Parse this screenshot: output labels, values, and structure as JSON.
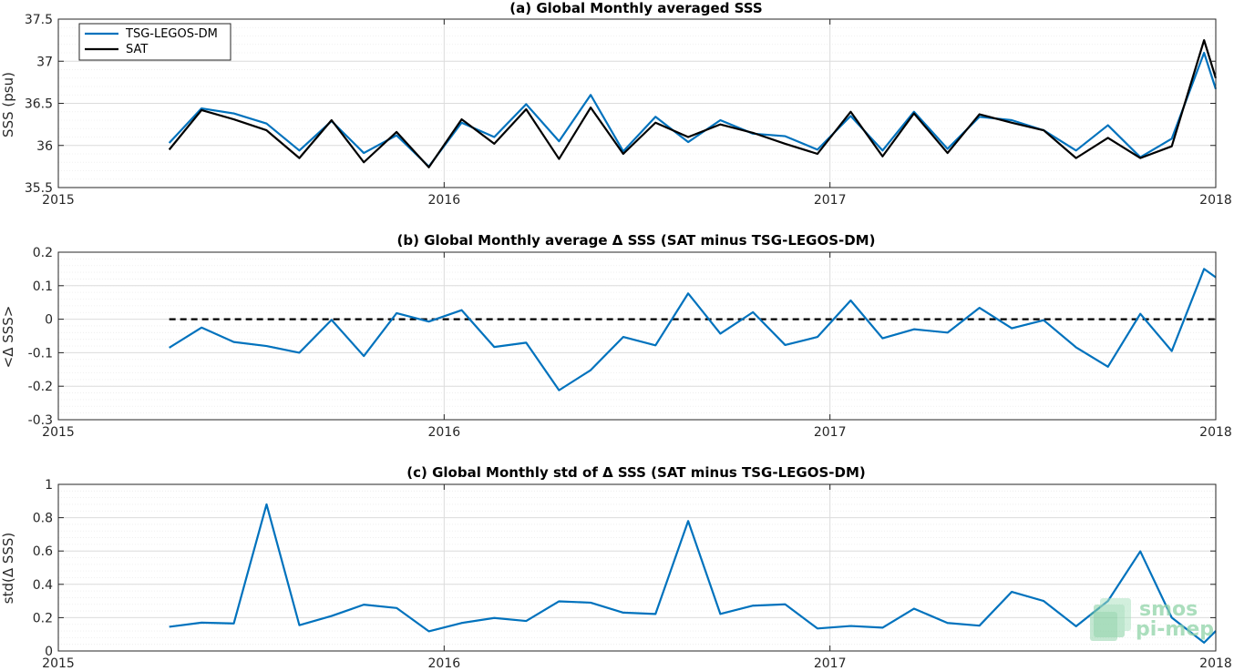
{
  "colors": {
    "tsg": "#0072bd",
    "sat": "#000000",
    "grid": "#dcdcdc",
    "watermark": "#8fd3a8"
  },
  "watermark": {
    "line1": "smos",
    "line2": "pi-mep"
  },
  "chart_data": [
    {
      "type": "line",
      "title": "(a) Global Monthly averaged SSS",
      "ylabel": "SSS (psu)",
      "xlabel": "",
      "xlim": [
        2015,
        2018
      ],
      "ylim": [
        35.5,
        37.5
      ],
      "xticks": [
        2015,
        2016,
        2017,
        2018
      ],
      "xtick_labels": [
        "2015",
        "2016",
        "2017",
        "2018"
      ],
      "yticks": [
        35.5,
        36,
        36.5,
        37,
        37.5
      ],
      "ytick_labels": [
        "35.5",
        "36",
        "36.5",
        "37",
        "37.5"
      ],
      "grid": true,
      "legend": {
        "placement": "top-left",
        "entries": [
          "TSG-LEGOS-DM",
          "SAT"
        ]
      },
      "x": [
        2015.2874,
        2015.3712,
        2015.4548,
        2015.5397,
        2015.6247,
        2015.7082,
        2015.7918,
        2015.8767,
        2015.9603,
        2016.0453,
        2016.1299,
        2016.2126,
        2016.2978,
        2016.3798,
        2016.4642,
        2016.5478,
        2016.6325,
        2016.7159,
        2016.8005,
        2016.8839,
        2016.9676,
        2017.0537,
        2017.1363,
        2017.2178,
        2017.3048,
        2017.3874,
        2017.4713,
        2017.5539,
        2017.6379,
        2017.7205,
        2017.8044,
        2017.8859,
        2017.9697,
        2018.0
      ],
      "series": [
        {
          "name": "TSG-LEGOS-DM",
          "color": "#0072bd",
          "values": [
            36.03,
            36.44,
            36.38,
            36.26,
            35.94,
            36.29,
            35.91,
            36.12,
            35.75,
            36.27,
            36.1,
            36.49,
            36.05,
            36.6,
            35.93,
            36.34,
            36.04,
            36.3,
            36.14,
            36.11,
            35.95,
            36.35,
            35.94,
            36.4,
            35.96,
            36.34,
            36.3,
            36.18,
            35.94,
            36.24,
            35.86,
            36.08,
            37.1,
            36.67
          ]
        },
        {
          "name": "SAT",
          "color": "#000000",
          "values": [
            35.95,
            36.42,
            36.31,
            36.18,
            35.85,
            36.3,
            35.8,
            36.16,
            35.74,
            36.31,
            36.02,
            36.43,
            35.84,
            36.45,
            35.9,
            36.27,
            36.1,
            36.25,
            36.15,
            36.02,
            35.9,
            36.4,
            35.87,
            36.38,
            35.91,
            36.37,
            36.27,
            36.18,
            35.85,
            36.09,
            35.85,
            35.99,
            37.25,
            36.8
          ]
        }
      ]
    },
    {
      "type": "line",
      "title": "(b) Global Monthly average Δ SSS (SAT minus TSG-LEGOS-DM)",
      "ylabel": "<Δ SSS>",
      "xlabel": "",
      "xlim": [
        2015,
        2018
      ],
      "ylim": [
        -0.3,
        0.2
      ],
      "xticks": [
        2015,
        2016,
        2017,
        2018
      ],
      "xtick_labels": [
        "2015",
        "2016",
        "2017",
        "2018"
      ],
      "yticks": [
        -0.3,
        -0.2,
        -0.1,
        0,
        0.1,
        0.2
      ],
      "ytick_labels": [
        "-0.3",
        "-0.2",
        "-0.1",
        "0",
        "0.1",
        "0.2"
      ],
      "grid": true,
      "reference_line": {
        "y": 0,
        "style": "dashed",
        "color": "#000000",
        "x_start": 2015.2874,
        "x_end": 2018.0
      },
      "x": [
        2015.2874,
        2015.3712,
        2015.4548,
        2015.5397,
        2015.6247,
        2015.7082,
        2015.7918,
        2015.8767,
        2015.9603,
        2016.0453,
        2016.1299,
        2016.2126,
        2016.2978,
        2016.3798,
        2016.4642,
        2016.5478,
        2016.6325,
        2016.7159,
        2016.8005,
        2016.8839,
        2016.9676,
        2017.0537,
        2017.1363,
        2017.2178,
        2017.3048,
        2017.3874,
        2017.4713,
        2017.5539,
        2017.6379,
        2017.7205,
        2017.8044,
        2017.8859,
        2017.9697,
        2018.0
      ],
      "series": [
        {
          "name": "",
          "color": "#0072bd",
          "values": [
            -0.085,
            -0.025,
            -0.068,
            -0.08,
            -0.1,
            -0.002,
            -0.11,
            0.018,
            -0.007,
            0.027,
            -0.083,
            -0.07,
            -0.212,
            -0.152,
            -0.053,
            -0.078,
            0.077,
            -0.043,
            0.021,
            -0.077,
            -0.053,
            0.056,
            -0.057,
            -0.03,
            -0.04,
            0.034,
            -0.027,
            -0.003,
            -0.084,
            -0.142,
            0.016,
            -0.095,
            0.15,
            0.125
          ]
        }
      ]
    },
    {
      "type": "line",
      "title": "(c) Global Monthly std of Δ SSS (SAT minus TSG-LEGOS-DM)",
      "ylabel": "std(Δ SSS)",
      "xlabel": "",
      "xlim": [
        2015,
        2018
      ],
      "ylim": [
        0,
        1
      ],
      "xticks": [
        2015,
        2016,
        2017,
        2018
      ],
      "xtick_labels": [
        "2015",
        "2016",
        "2017",
        "2018"
      ],
      "yticks": [
        0,
        0.2,
        0.4,
        0.6,
        0.8,
        1
      ],
      "ytick_labels": [
        "0",
        "0.2",
        "0.4",
        "0.6",
        "0.8",
        "1"
      ],
      "grid": true,
      "x": [
        2015.2874,
        2015.3712,
        2015.4548,
        2015.5397,
        2015.6247,
        2015.7082,
        2015.7918,
        2015.8767,
        2015.9603,
        2016.0453,
        2016.1299,
        2016.2126,
        2016.2978,
        2016.3798,
        2016.4642,
        2016.5478,
        2016.6325,
        2016.7159,
        2016.8005,
        2016.8839,
        2016.9676,
        2017.0537,
        2017.1363,
        2017.2178,
        2017.3048,
        2017.3874,
        2017.4713,
        2017.5539,
        2017.6379,
        2017.7205,
        2017.8044,
        2017.8859,
        2017.9697,
        2018.0
      ],
      "series": [
        {
          "name": "",
          "color": "#0072bd",
          "values": [
            0.145,
            0.17,
            0.165,
            0.88,
            0.155,
            0.21,
            0.278,
            0.258,
            0.118,
            0.168,
            0.198,
            0.18,
            0.298,
            0.29,
            0.23,
            0.222,
            0.78,
            0.222,
            0.272,
            0.28,
            0.135,
            0.15,
            0.14,
            0.254,
            0.168,
            0.152,
            0.355,
            0.3,
            0.148,
            0.3,
            0.598,
            0.2,
            0.05,
            0.12
          ]
        }
      ]
    }
  ]
}
